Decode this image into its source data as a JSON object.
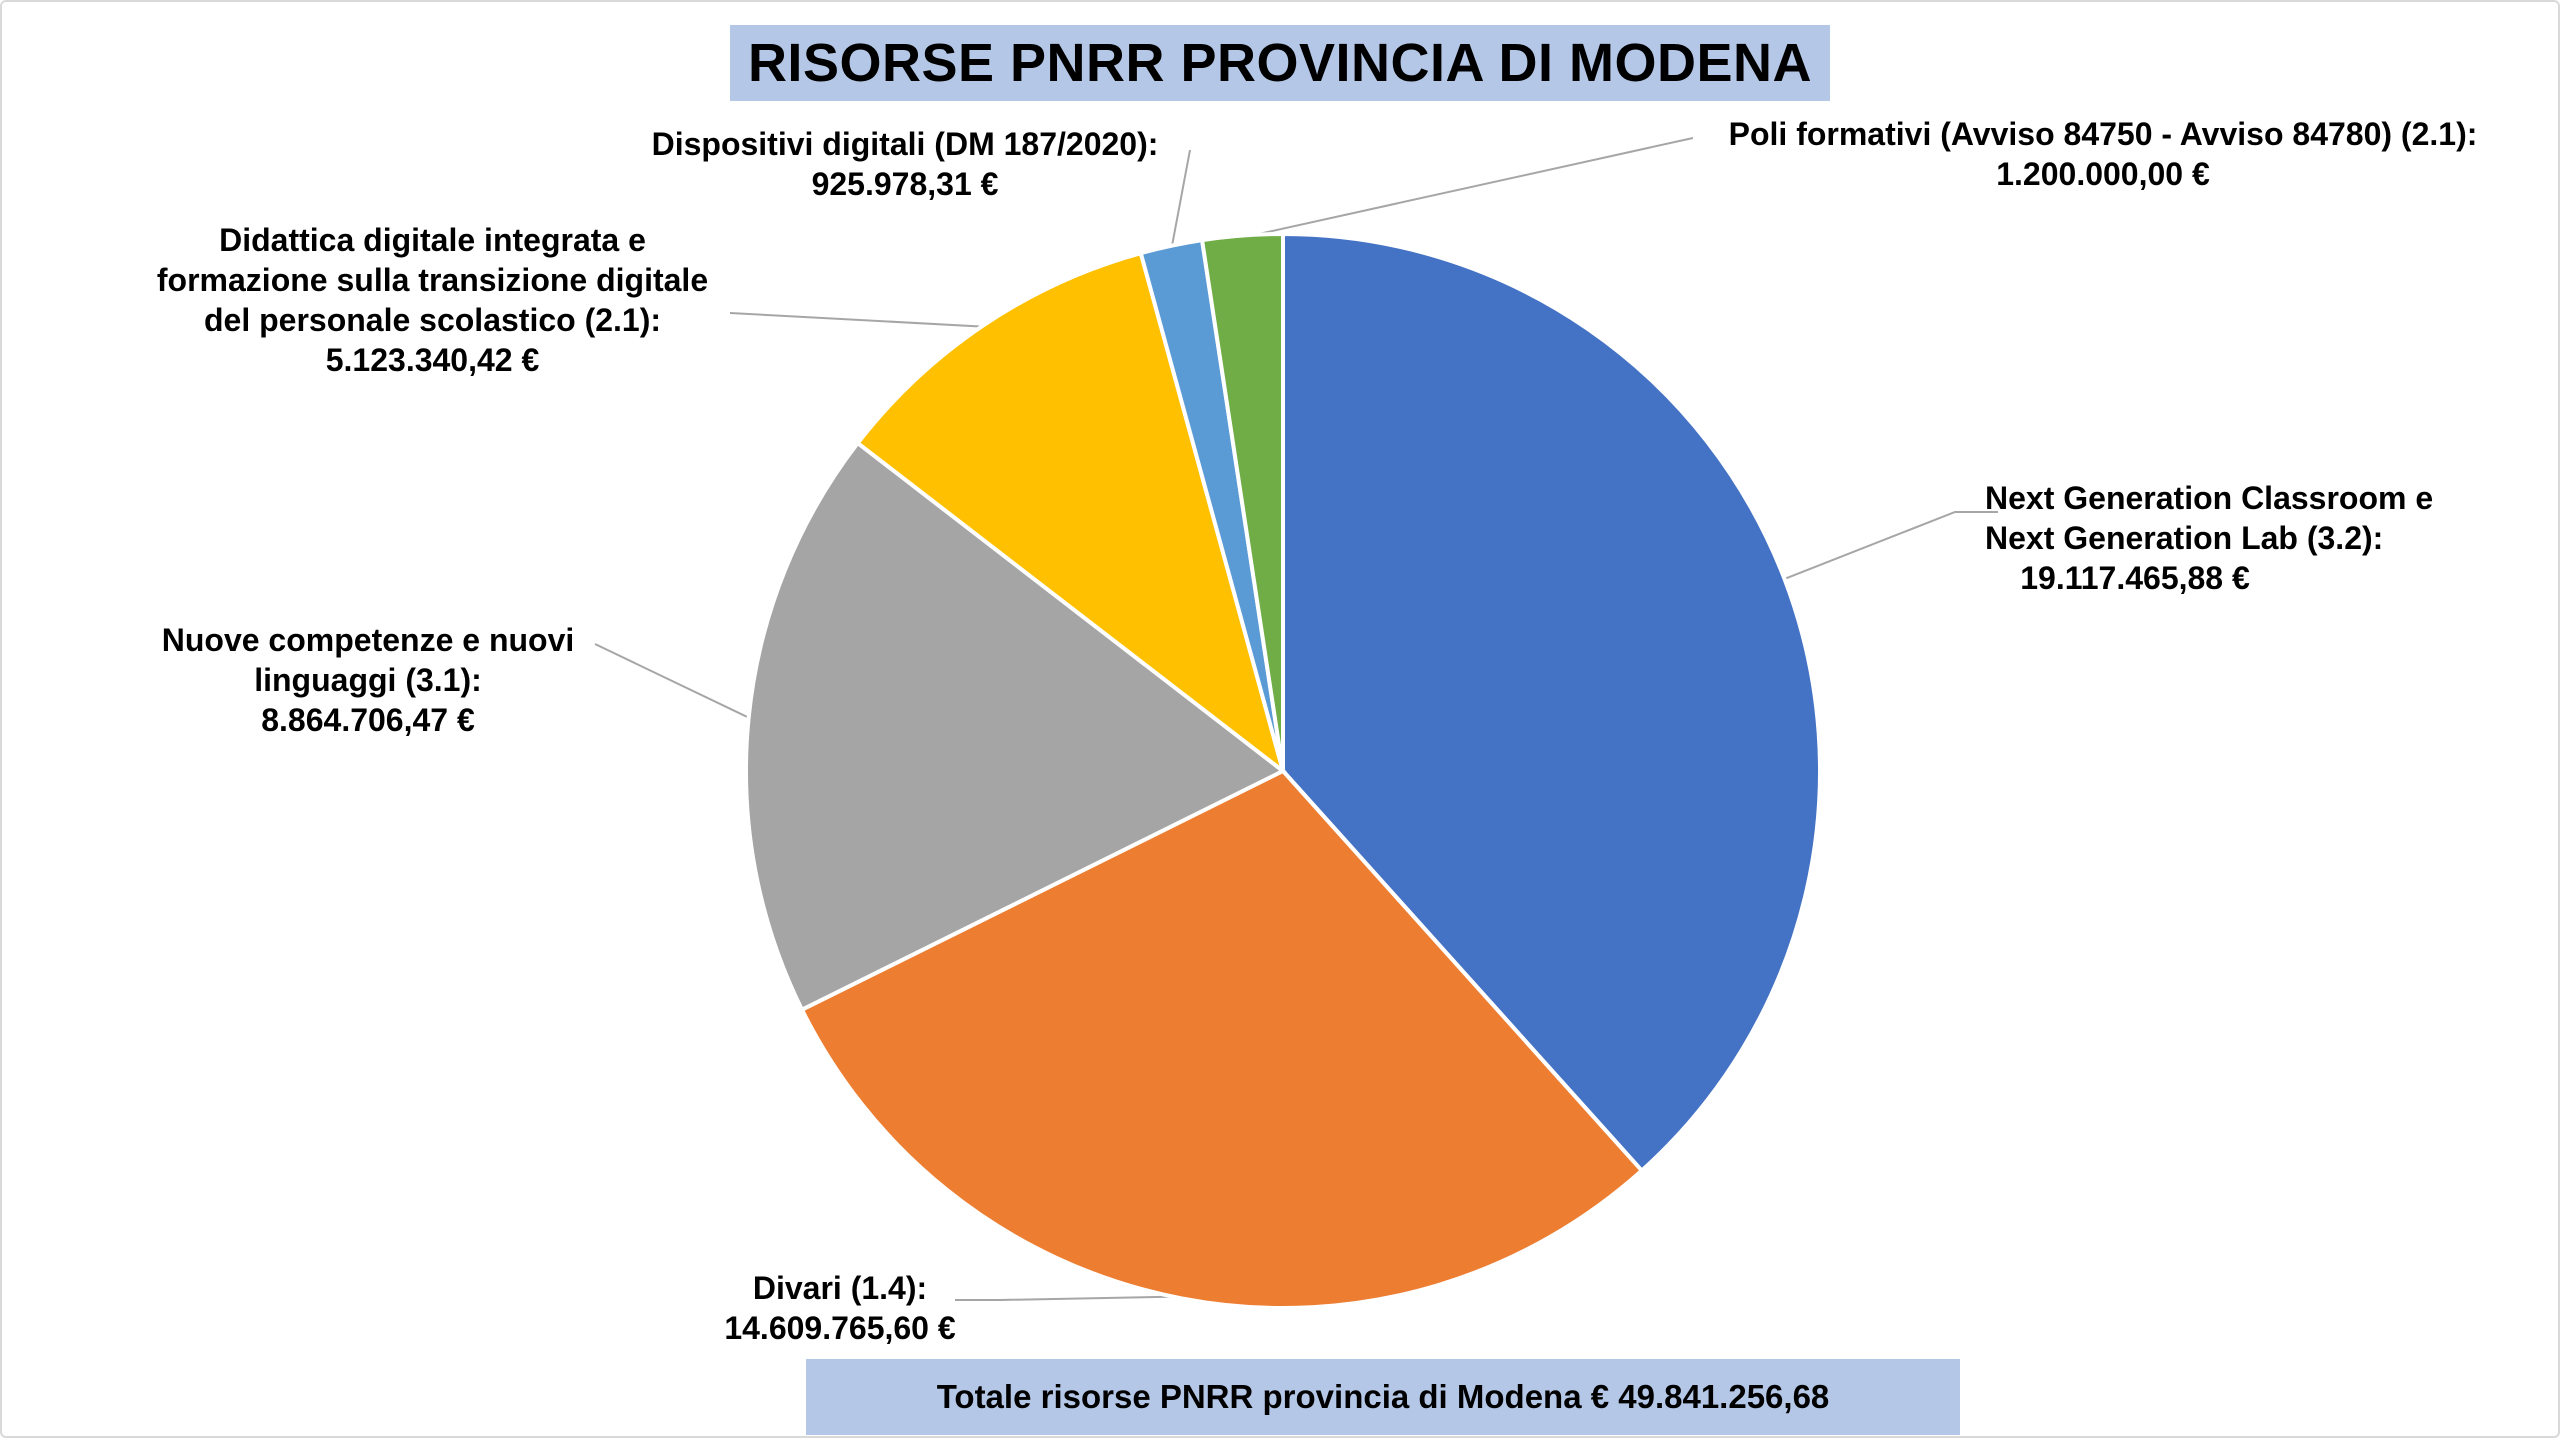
{
  "title": "RISORSE PNRR PROVINCIA DI MODENA",
  "total_label": "Totale risorse PNRR provincia di Modena € 49.841.256,68",
  "chart_data": {
    "type": "pie",
    "title": "RISORSE PNRR PROVINCIA DI MODENA",
    "slices": [
      {
        "name": "Next Generation Classroom e Next Generation Lab (3.2):",
        "label_lines": [
          "Next Generation Classroom e",
          "Next Generation Lab (3.2):"
        ],
        "value": 19117465.88,
        "value_text": "19.117.465,88 €",
        "color": "#4472c4"
      },
      {
        "name": "Divari (1.4):",
        "label_lines": [
          "Divari (1.4):"
        ],
        "value": 14609765.6,
        "value_text": "14.609.765,60 €",
        "color": "#ed7d31"
      },
      {
        "name": "Nuove competenze e nuovi linguaggi (3.1):",
        "label_lines": [
          "Nuove competenze e nuovi",
          "linguaggi (3.1):"
        ],
        "value": 8864706.47,
        "value_text": "8.864.706,47 €",
        "color": "#a5a5a5"
      },
      {
        "name": "Didattica digitale integrata e formazione sulla transizione digitale del personale scolastico (2.1):",
        "label_lines": [
          "Didattica digitale integrata e",
          "formazione sulla transizione digitale",
          "del personale scolastico (2.1):"
        ],
        "value": 5123340.42,
        "value_text": "5.123.340,42 €",
        "color": "#ffc000"
      },
      {
        "name": "Dispositivi digitali (DM 187/2020):",
        "label_lines": [
          "Dispositivi digitali (DM 187/2020):"
        ],
        "value": 925978.31,
        "value_text": "925.978,31 €",
        "color": "#5b9bd5"
      },
      {
        "name": "Poli formativi (Avviso 84750 - Avviso 84780) (2.1):",
        "label_lines": [
          "Poli formativi (Avviso 84750 - Avviso 84780) (2.1):"
        ],
        "value": 1200000.0,
        "value_text": "1.200.000,00 €",
        "color": "#70ad47"
      }
    ],
    "start_angle_deg": 0,
    "direction": "clockwise",
    "legend": "none"
  }
}
